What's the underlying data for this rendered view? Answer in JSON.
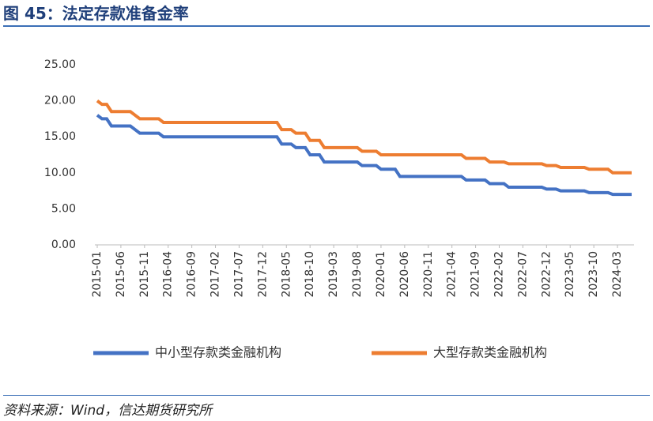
{
  "chart_data": {
    "type": "line",
    "title": "图 45：法定存款准备金率",
    "source": "资料来源：Wind，信达期货研究所",
    "categories": [
      "2015-01",
      null,
      null,
      null,
      null,
      "2015-06",
      null,
      null,
      null,
      null,
      "2015-11",
      null,
      null,
      null,
      null,
      "2016-04",
      null,
      null,
      null,
      null,
      "2016-09",
      null,
      null,
      null,
      null,
      "2017-02",
      null,
      null,
      null,
      null,
      "2017-07",
      null,
      null,
      null,
      null,
      "2017-12",
      null,
      null,
      null,
      null,
      "2018-05",
      null,
      null,
      null,
      null,
      "2018-10",
      null,
      null,
      null,
      null,
      "2019-03",
      null,
      null,
      null,
      null,
      "2019-08",
      null,
      null,
      null,
      null,
      "2020-01",
      null,
      null,
      null,
      null,
      "2020-06",
      null,
      null,
      null,
      null,
      "2020-11",
      null,
      null,
      null,
      null,
      "2021-04",
      null,
      null,
      null,
      null,
      "2021-09",
      null,
      null,
      null,
      null,
      "2022-02",
      null,
      null,
      null,
      null,
      "2022-07",
      null,
      null,
      null,
      null,
      "2022-12",
      null,
      null,
      null,
      null,
      "2023-05",
      null,
      null,
      null,
      null,
      "2023-10",
      null,
      null,
      null,
      null,
      "2024-03",
      null,
      null,
      null
    ],
    "series": [
      {
        "name": "中小型存款类金融机构",
        "color": "#4472c4",
        "values": [
          18,
          17.5,
          17.5,
          16.5,
          16.5,
          16.5,
          16.5,
          16.5,
          16,
          15.5,
          15.5,
          15.5,
          15.5,
          15.5,
          15,
          15,
          15,
          15,
          15,
          15,
          15,
          15,
          15,
          15,
          15,
          15,
          15,
          15,
          15,
          15,
          15,
          15,
          15,
          15,
          15,
          15,
          15,
          15,
          15,
          14,
          14,
          14,
          13.5,
          13.5,
          13.5,
          12.5,
          12.5,
          12.5,
          11.5,
          11.5,
          11.5,
          11.5,
          11.5,
          11.5,
          11.5,
          11.5,
          11,
          11,
          11,
          11,
          10.5,
          10.5,
          10.5,
          10.5,
          9.5,
          9.5,
          9.5,
          9.5,
          9.5,
          9.5,
          9.5,
          9.5,
          9.5,
          9.5,
          9.5,
          9.5,
          9.5,
          9.5,
          9,
          9,
          9,
          9,
          9,
          8.5,
          8.5,
          8.5,
          8.5,
          8,
          8,
          8,
          8,
          8,
          8,
          8,
          8,
          7.75,
          7.75,
          7.75,
          7.5,
          7.5,
          7.5,
          7.5,
          7.5,
          7.5,
          7.25,
          7.25,
          7.25,
          7.25,
          7.25,
          7,
          7,
          7,
          7,
          7
        ]
      },
      {
        "name": "大型存款类金融机构",
        "color": "#ed7d31",
        "values": [
          20,
          19.5,
          19.5,
          18.5,
          18.5,
          18.5,
          18.5,
          18.5,
          18,
          17.5,
          17.5,
          17.5,
          17.5,
          17.5,
          17,
          17,
          17,
          17,
          17,
          17,
          17,
          17,
          17,
          17,
          17,
          17,
          17,
          17,
          17,
          17,
          17,
          17,
          17,
          17,
          17,
          17,
          17,
          17,
          17,
          16,
          16,
          16,
          15.5,
          15.5,
          15.5,
          14.5,
          14.5,
          14.5,
          13.5,
          13.5,
          13.5,
          13.5,
          13.5,
          13.5,
          13.5,
          13.5,
          13,
          13,
          13,
          13,
          12.5,
          12.5,
          12.5,
          12.5,
          12.5,
          12.5,
          12.5,
          12.5,
          12.5,
          12.5,
          12.5,
          12.5,
          12.5,
          12.5,
          12.5,
          12.5,
          12.5,
          12.5,
          12,
          12,
          12,
          12,
          12,
          11.5,
          11.5,
          11.5,
          11.5,
          11.25,
          11.25,
          11.25,
          11.25,
          11.25,
          11.25,
          11.25,
          11.25,
          11,
          11,
          11,
          10.75,
          10.75,
          10.75,
          10.75,
          10.75,
          10.75,
          10.5,
          10.5,
          10.5,
          10.5,
          10.5,
          10,
          10,
          10,
          10,
          10
        ]
      }
    ],
    "ylim": [
      0,
      25
    ],
    "yticks": [
      {
        "value": 0,
        "label": "0.00"
      },
      {
        "value": 5,
        "label": "5.00"
      },
      {
        "value": 10,
        "label": "10.00"
      },
      {
        "value": 15,
        "label": "15.00"
      },
      {
        "value": 20,
        "label": "20.00"
      },
      {
        "value": 25,
        "label": "25.00"
      }
    ],
    "grid": false
  }
}
